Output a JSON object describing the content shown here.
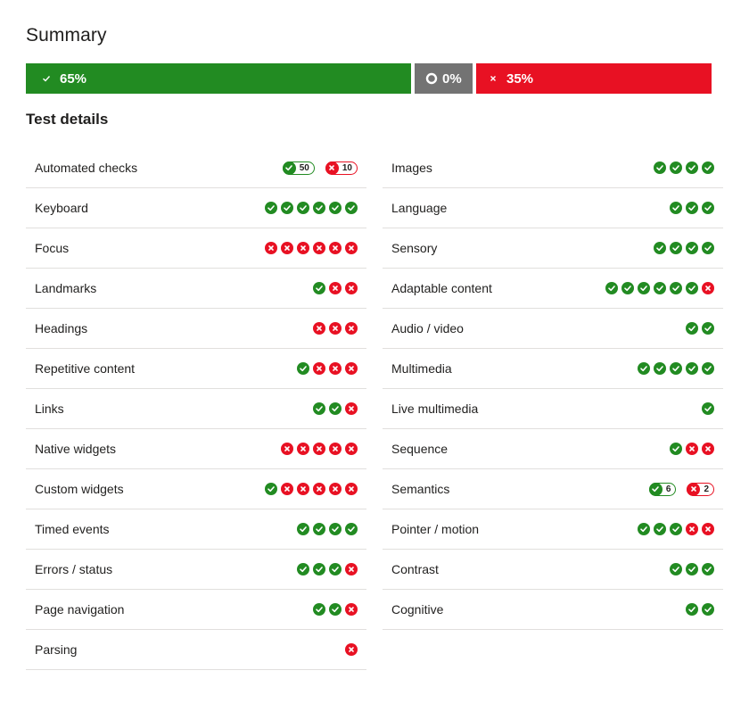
{
  "summary": {
    "title": "Summary",
    "pass_label": "65%",
    "incomplete_label": "0%",
    "fail_label": "35%",
    "pass_percent": 65,
    "incomplete_percent": 0,
    "fail_percent": 35
  },
  "details_title": "Test details",
  "colors": {
    "pass": "#228b22",
    "fail": "#e81123",
    "incomplete": "#737373"
  },
  "left_column": [
    {
      "label": "Automated checks",
      "counts": {
        "pass": "50",
        "fail": "10"
      }
    },
    {
      "label": "Keyboard",
      "results": [
        "pass",
        "pass",
        "pass",
        "pass",
        "pass",
        "pass"
      ]
    },
    {
      "label": "Focus",
      "results": [
        "fail",
        "fail",
        "fail",
        "fail",
        "fail",
        "fail"
      ]
    },
    {
      "label": "Landmarks",
      "results": [
        "pass",
        "fail",
        "fail"
      ]
    },
    {
      "label": "Headings",
      "results": [
        "fail",
        "fail",
        "fail"
      ]
    },
    {
      "label": "Repetitive content",
      "results": [
        "pass",
        "fail",
        "fail",
        "fail"
      ]
    },
    {
      "label": "Links",
      "results": [
        "pass",
        "pass",
        "fail"
      ]
    },
    {
      "label": "Native widgets",
      "results": [
        "fail",
        "fail",
        "fail",
        "fail",
        "fail"
      ]
    },
    {
      "label": "Custom widgets",
      "results": [
        "pass",
        "fail",
        "fail",
        "fail",
        "fail",
        "fail"
      ]
    },
    {
      "label": "Timed events",
      "results": [
        "pass",
        "pass",
        "pass",
        "pass"
      ]
    },
    {
      "label": "Errors / status",
      "results": [
        "pass",
        "pass",
        "pass",
        "fail"
      ]
    },
    {
      "label": "Page navigation",
      "results": [
        "pass",
        "pass",
        "fail"
      ]
    },
    {
      "label": "Parsing",
      "results": [
        "fail"
      ]
    }
  ],
  "right_column": [
    {
      "label": "Images",
      "results": [
        "pass",
        "pass",
        "pass",
        "pass"
      ]
    },
    {
      "label": "Language",
      "results": [
        "pass",
        "pass",
        "pass"
      ]
    },
    {
      "label": "Sensory",
      "results": [
        "pass",
        "pass",
        "pass",
        "pass"
      ]
    },
    {
      "label": "Adaptable content",
      "results": [
        "pass",
        "pass",
        "pass",
        "pass",
        "pass",
        "pass",
        "fail"
      ]
    },
    {
      "label": "Audio / video",
      "results": [
        "pass",
        "pass"
      ]
    },
    {
      "label": "Multimedia",
      "results": [
        "pass",
        "pass",
        "pass",
        "pass",
        "pass"
      ]
    },
    {
      "label": "Live multimedia",
      "results": [
        "pass"
      ]
    },
    {
      "label": "Sequence",
      "results": [
        "pass",
        "fail",
        "fail"
      ]
    },
    {
      "label": "Semantics",
      "counts": {
        "pass": "6",
        "fail": "2"
      }
    },
    {
      "label": "Pointer / motion",
      "results": [
        "pass",
        "pass",
        "pass",
        "fail",
        "fail"
      ]
    },
    {
      "label": "Contrast",
      "results": [
        "pass",
        "pass",
        "pass"
      ]
    },
    {
      "label": "Cognitive",
      "results": [
        "pass",
        "pass"
      ]
    }
  ]
}
